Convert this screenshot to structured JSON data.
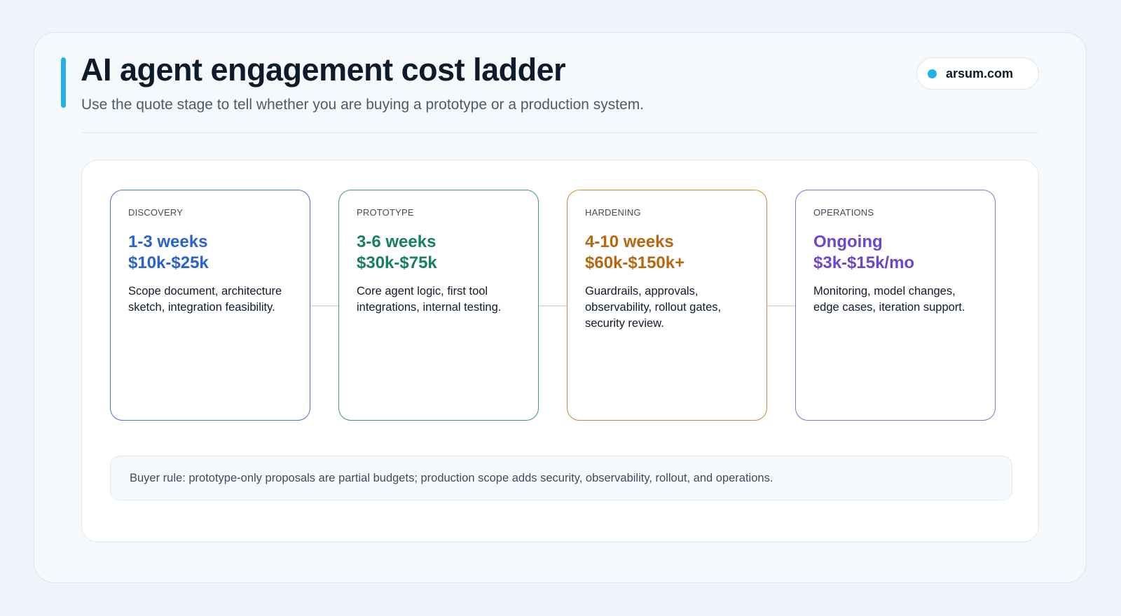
{
  "header": {
    "title": "AI agent engagement cost ladder",
    "subtitle": "Use the quote stage to tell whether you are buying a prototype or a production system."
  },
  "badge": "arsum.com",
  "stages": [
    {
      "label": "DISCOVERY",
      "duration": "1-3 weeks",
      "price": "$10k-$25k",
      "description": "Scope document, architecture sketch, integration feasibility."
    },
    {
      "label": "PROTOTYPE",
      "duration": "3-6 weeks",
      "price": "$30k-$75k",
      "description": "Core agent logic, first tool integrations, internal testing."
    },
    {
      "label": "HARDENING",
      "duration": "4-10 weeks",
      "price": "$60k-$150k+",
      "description": "Guardrails, approvals, observability, rollout gates, security review."
    },
    {
      "label": "OPERATIONS",
      "duration": "Ongoing",
      "price": "$3k-$15k/mo",
      "description": "Monitoring, model changes, edge cases, iteration support."
    }
  ],
  "note": "Buyer rule: prototype-only proposals are partial budgets; production scope adds security, observability, rollout, and operations."
}
